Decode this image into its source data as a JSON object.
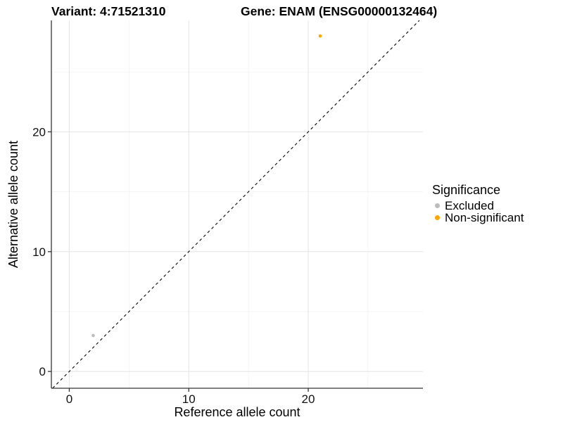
{
  "chart_data": {
    "type": "scatter",
    "titles": {
      "left": "Variant: 4:71521310",
      "right": "Gene: ENAM (ENSG00000132464)"
    },
    "xlabel": "Reference allele count",
    "ylabel": "Alternative allele count",
    "xlim": [
      -1.5,
      29.6
    ],
    "ylim": [
      -1.4,
      29.3
    ],
    "x_major_ticks": [
      0,
      10,
      20
    ],
    "y_major_ticks": [
      0,
      10,
      20
    ],
    "x_minor_gridlines": [
      5,
      15,
      25
    ],
    "y_minor_gridlines": [
      5,
      15,
      25
    ],
    "grid": true,
    "reference_line": {
      "type": "identity",
      "slope": 1,
      "intercept": 0,
      "style": "dashed",
      "color": "#000000"
    },
    "points": [
      {
        "x": 2,
        "y": 3,
        "series": "Excluded",
        "color": "#bdbdbd",
        "radius": 2.3
      },
      {
        "x": 21,
        "y": 28,
        "series": "Non-significant",
        "color": "#ffa500",
        "radius": 2.3
      }
    ],
    "legend": {
      "title": "Significance",
      "position": "right",
      "items": [
        {
          "label": "Excluded",
          "color": "#bdbdbd"
        },
        {
          "label": "Non-significant",
          "color": "#ffa500"
        }
      ]
    },
    "colors": {
      "grid_major": "#e6e6e6",
      "grid_minor": "#f1f1f1",
      "axis": "#333333",
      "tick_text": "#111111",
      "background": "#ffffff"
    }
  }
}
